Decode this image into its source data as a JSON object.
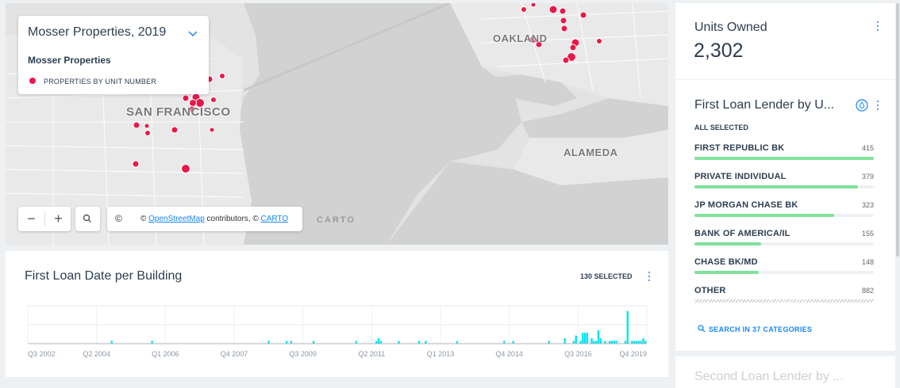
{
  "map": {
    "legend": {
      "title": "Mosser Properties, 2019",
      "layer_name": "Mosser Properties",
      "item_label": "PROPERTIES BY UNIT NUMBER",
      "dot_color": "#e8194a"
    },
    "labels": {
      "sf": "SAN FRANCISCO",
      "oakland": "OAKLAND",
      "alameda": "ALAMEDA"
    },
    "controls": {
      "zoom_out": "−",
      "zoom_in": "+",
      "search_icon": "search-icon"
    },
    "attribution": {
      "cc_symbol": "©",
      "prefix": "©",
      "osm_link": "OpenStreetMap",
      "middle": "contributors, ©",
      "carto_link": "CARTO"
    },
    "watermark": "CARTO"
  },
  "chart_panel": {
    "title": "First Loan Date per Building",
    "selected": "130 SELECTED"
  },
  "chart_data": {
    "type": "bar",
    "x_tick_labels": [
      "Q3 2002",
      "Q2 2004",
      "Q1 2006",
      "Q4 2007",
      "Q3 2009",
      "Q2 2011",
      "Q1 2013",
      "Q4 2014",
      "Q3 2016",
      "Q4 2019"
    ],
    "bar_color": "#00e5ee",
    "grid": true,
    "values": [
      0,
      0,
      0,
      0,
      0,
      0,
      0,
      0,
      0,
      0,
      0,
      0,
      0,
      0,
      0,
      0,
      0,
      0,
      0,
      0,
      0,
      0,
      0,
      0,
      0,
      0,
      0,
      0,
      0,
      0,
      0,
      0,
      0,
      0,
      0,
      0,
      0,
      1,
      0,
      0,
      0,
      0,
      0,
      0,
      0,
      0,
      0,
      0,
      0,
      0,
      0,
      0,
      0,
      0,
      0,
      1,
      0,
      0,
      0,
      0,
      0,
      0,
      0,
      0,
      0,
      0,
      0,
      0,
      0,
      0,
      0,
      0,
      0,
      0,
      0,
      0,
      0,
      0,
      0,
      0,
      0,
      0,
      0,
      0,
      0,
      0,
      0,
      0,
      0,
      0,
      0,
      0,
      0,
      0,
      0,
      0,
      0,
      0,
      0,
      0,
      0,
      0,
      0,
      0,
      0,
      0,
      0,
      1,
      0,
      0,
      0,
      0,
      0,
      0,
      0,
      1,
      0,
      1,
      0,
      0,
      0,
      0,
      0,
      0,
      0,
      0,
      0,
      1,
      0,
      0,
      0,
      0,
      0,
      0,
      0,
      0,
      0,
      0,
      0,
      0,
      0,
      0,
      0,
      0,
      0,
      0,
      1,
      0,
      0,
      0,
      0,
      0,
      0,
      0,
      0,
      1,
      2,
      1,
      0,
      0,
      0,
      0,
      0,
      0,
      0,
      1,
      0,
      0,
      0,
      0,
      0,
      0,
      0,
      0,
      1,
      0,
      0,
      1,
      0,
      0,
      0,
      0,
      0,
      0,
      0,
      0,
      0,
      0,
      0,
      0,
      0,
      1,
      0,
      0,
      0,
      0,
      0,
      0,
      0,
      0,
      0,
      0,
      0,
      0,
      0,
      0,
      0,
      0,
      0,
      0,
      0,
      0,
      1,
      0,
      0,
      0,
      1,
      0,
      0,
      0,
      0,
      0,
      0,
      0,
      0,
      0,
      0,
      0,
      0,
      0,
      0,
      0,
      1,
      0,
      0,
      0,
      0,
      0,
      0,
      2,
      0,
      0,
      0,
      1,
      3,
      0,
      1,
      4,
      4,
      4,
      0,
      2,
      1,
      1,
      5,
      2,
      0,
      1,
      0,
      1,
      1,
      1,
      1,
      0,
      0,
      0,
      1,
      12,
      0,
      1,
      1,
      1,
      1,
      1,
      2,
      1
    ],
    "ylim": [
      0,
      14
    ]
  },
  "units_owned": {
    "label": "Units Owned",
    "value": "2,302"
  },
  "lender_widget": {
    "title": "First Loan Lender by U...",
    "all_selected": "ALL SELECTED",
    "max": 415,
    "rows": [
      {
        "name": "FIRST REPUBLIC BK",
        "count": "415",
        "value": 415
      },
      {
        "name": "PRIVATE INDIVIDUAL",
        "count": "379",
        "value": 379
      },
      {
        "name": "JP MORGAN CHASE BK",
        "count": "323",
        "value": 323
      },
      {
        "name": "BANK OF AMERICA/IL",
        "count": "155",
        "value": 155
      },
      {
        "name": "CHASE BK/MD",
        "count": "148",
        "value": 148
      },
      {
        "name": "OTHER",
        "count": "882",
        "value": 882
      }
    ],
    "search_link": "SEARCH IN 37 CATEGORIES",
    "bar_color": "#7fe29b"
  },
  "third_widget": {
    "title": "Second Loan Lender by ..."
  },
  "accent_color": "#1785fb"
}
